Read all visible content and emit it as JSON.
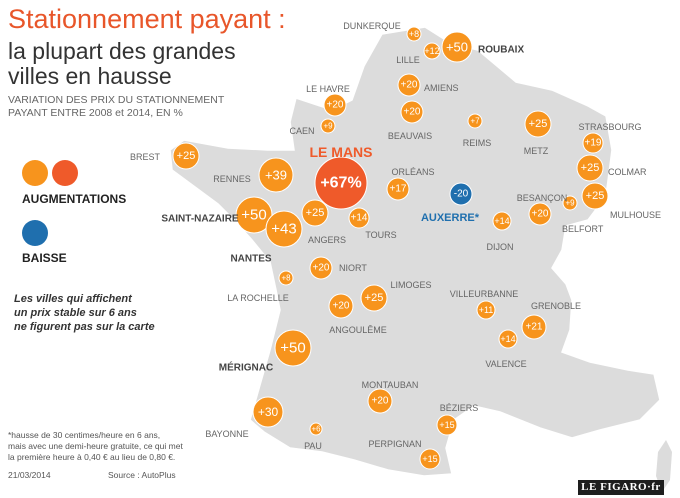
{
  "header": {
    "title": "Stationnement payant :",
    "subtitle_line1": "la plupart des grandes",
    "subtitle_line2": "villes en hausse",
    "desc_line1": "VARIATION DES PRIX DU STATIONNEMENT",
    "desc_line2": "PAYANT ENTRE 2008 et 2014, EN %"
  },
  "legend": {
    "increase_label": "AUGMENTATIONS",
    "decrease_label": "BAISSE"
  },
  "note": {
    "line1": "Les villes qui affichent",
    "line2": "un prix stable sur 6 ans",
    "line3": "ne figurent pas sur la carte"
  },
  "footnote": {
    "line1": "*hausse de 30 centimes/heure en 6 ans,",
    "line2": "mais avec une demi-heure gratuite, ce qui met",
    "line3": "la première heure à 0,40 € au lieu de 0,80 €."
  },
  "footer": {
    "date": "21/03/2014",
    "source": "Source : AutoPlus",
    "logo": "LE FIGARO·fr"
  },
  "colors": {
    "increase": "#f7941d",
    "highlight": "#ef5a2a",
    "decrease": "#1f6fae",
    "land": "#dcdcdc",
    "text": "#666666"
  },
  "cities": [
    {
      "name": "DUNKERQUE",
      "value": "+8"
    },
    {
      "name": "LILLE",
      "value": "+12"
    },
    {
      "name": "ROUBAIX",
      "value": "+50"
    },
    {
      "name": "AMIENS",
      "value": "+20"
    },
    {
      "name": "LE HAVRE",
      "value": "+20"
    },
    {
      "name": "CAEN",
      "value": "+9"
    },
    {
      "name": "BEAUVAIS",
      "value": "+20"
    },
    {
      "name": "REIMS",
      "value": "+7"
    },
    {
      "name": "METZ",
      "value": "+25"
    },
    {
      "name": "STRASBOURG",
      "value": "+19"
    },
    {
      "name": "COLMAR",
      "value": "+25"
    },
    {
      "name": "MULHOUSE",
      "value": "+25"
    },
    {
      "name": "BELFORT",
      "value": "+9"
    },
    {
      "name": "BESANÇON",
      "value": "+20"
    },
    {
      "name": "DIJON",
      "value": "+14"
    },
    {
      "name": "AUXERRE*",
      "value": "-20"
    },
    {
      "name": "ORLÉANS",
      "value": "+17"
    },
    {
      "name": "LE MANS",
      "value": "+67%"
    },
    {
      "name": "TOURS",
      "value": "+14"
    },
    {
      "name": "ANGERS",
      "value": "+25"
    },
    {
      "name": "RENNES",
      "value": "+39"
    },
    {
      "name": "BREST",
      "value": "+25"
    },
    {
      "name": "SAINT-NAZAIRE",
      "value": "+50"
    },
    {
      "name": "NANTES",
      "value": "+43"
    },
    {
      "name": "NIORT",
      "value": "+20"
    },
    {
      "name": "LA ROCHELLE",
      "value": "+8"
    },
    {
      "name": "LIMOGES",
      "value": "+25"
    },
    {
      "name": "ANGOULÊME",
      "value": "+20"
    },
    {
      "name": "VILLEURBANNE",
      "value": "+11"
    },
    {
      "name": "GRENOBLE",
      "value": "+21"
    },
    {
      "name": "VALENCE",
      "value": "+14"
    },
    {
      "name": "MÉRIGNAC",
      "value": "+50"
    },
    {
      "name": "MONTAUBAN",
      "value": "+20"
    },
    {
      "name": "BAYONNE",
      "value": "+30"
    },
    {
      "name": "PAU",
      "value": "+6"
    },
    {
      "name": "BÉZIERS",
      "value": "+15"
    },
    {
      "name": "PERPIGNAN",
      "value": "+15"
    }
  ]
}
